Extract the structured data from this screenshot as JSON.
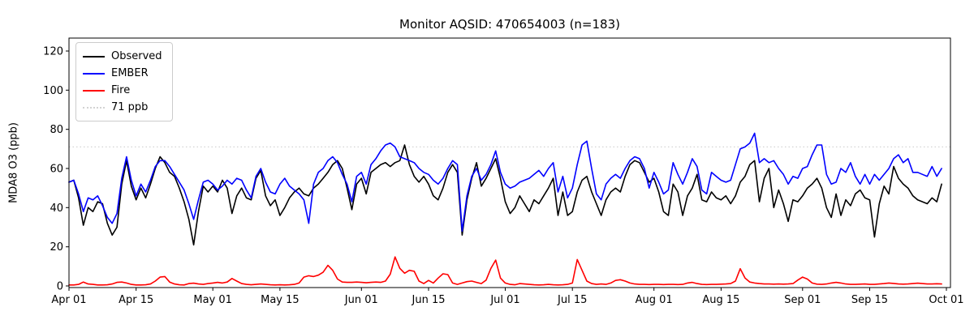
{
  "figure": {
    "title": "Monitor AQSID: 470654003 (n=183)",
    "ylabel": "MDA8 O3 (ppb)"
  },
  "legend": {
    "items": [
      {
        "label": "Observed",
        "color": "#000000",
        "style": "solid"
      },
      {
        "label": "EMBER",
        "color": "#0000ff",
        "style": "solid"
      },
      {
        "label": "Fire",
        "color": "#ff0000",
        "style": "solid"
      },
      {
        "label": "71 ppb",
        "color": "#d3d3d3",
        "style": "dotted"
      }
    ]
  },
  "chart_data": {
    "type": "line",
    "title": "Monitor AQSID: 470654003 (n=183)",
    "xlabel": "",
    "ylabel": "MDA8 O3 (ppb)",
    "x_unit": "daily values, Apr 01 through Sep 30 (day index 0-182)",
    "n_points": 183,
    "ylim": [
      -1,
      126
    ],
    "y_ticks": [
      0,
      20,
      40,
      60,
      80,
      100,
      120
    ],
    "x_tick_days": [
      0,
      14,
      30,
      44,
      61,
      75,
      91,
      105,
      122,
      136,
      153,
      167,
      183
    ],
    "x_tick_labels": [
      "Apr 01",
      "Apr 15",
      "May 01",
      "May 15",
      "Jun 01",
      "Jun 15",
      "Jul 01",
      "Jul 15",
      "Aug 01",
      "Aug 15",
      "Sep 01",
      "Sep 15",
      "Oct 01"
    ],
    "grid": false,
    "legend_position": "upper left",
    "threshold": {
      "value": 71,
      "label": "71 ppb",
      "color": "#d3d3d3",
      "style": "dotted"
    },
    "series": [
      {
        "name": "Observed",
        "color": "#000000",
        "values": [
          53,
          54,
          45,
          31,
          40,
          38,
          43,
          42,
          32,
          26,
          30,
          52,
          64,
          51,
          44,
          50,
          45,
          52,
          60,
          66,
          63,
          58,
          56,
          50,
          43,
          34,
          21,
          38,
          51,
          48,
          51,
          48,
          54,
          50,
          37,
          46,
          50,
          45,
          44,
          55,
          59,
          46,
          41,
          44,
          36,
          40,
          45,
          48,
          50,
          47,
          46,
          50,
          52,
          55,
          58,
          62,
          64,
          60,
          50,
          39,
          52,
          55,
          47,
          58,
          60,
          62,
          63,
          61,
          63,
          64,
          72,
          62,
          56,
          53,
          56,
          52,
          46,
          44,
          50,
          58,
          62,
          58,
          26,
          44,
          55,
          63,
          51,
          55,
          60,
          65,
          55,
          43,
          37,
          40,
          46,
          42,
          38,
          44,
          42,
          46,
          50,
          55,
          36,
          48,
          36,
          38,
          48,
          54,
          56,
          48,
          42,
          36,
          44,
          48,
          50,
          48,
          56,
          62,
          64,
          63,
          58,
          53,
          55,
          48,
          38,
          36,
          52,
          48,
          36,
          46,
          50,
          57,
          44,
          43,
          48,
          45,
          44,
          46,
          42,
          46,
          53,
          56,
          62,
          64,
          43,
          55,
          60,
          40,
          49,
          42,
          33,
          44,
          43,
          46,
          50,
          52,
          55,
          50,
          40,
          35,
          47,
          36,
          44,
          41,
          47,
          49,
          45,
          44,
          25,
          42,
          51,
          47,
          61,
          55,
          52,
          50,
          46,
          44,
          43,
          42,
          45,
          43,
          52
        ]
      },
      {
        "name": "EMBER",
        "color": "#0000ff",
        "values": [
          53,
          54,
          47,
          38,
          45,
          44,
          46,
          41,
          35,
          32,
          37,
          55,
          66,
          54,
          46,
          52,
          48,
          54,
          61,
          64,
          64,
          61,
          57,
          53,
          49,
          42,
          34,
          44,
          53,
          54,
          52,
          49,
          51,
          54,
          52,
          55,
          54,
          49,
          45,
          56,
          60,
          53,
          48,
          47,
          52,
          55,
          51,
          49,
          47,
          44,
          32,
          52,
          58,
          60,
          64,
          66,
          63,
          57,
          52,
          43,
          56,
          58,
          52,
          62,
          65,
          69,
          72,
          73,
          71,
          66,
          65,
          64,
          63,
          60,
          58,
          57,
          54,
          52,
          55,
          60,
          64,
          62,
          28,
          46,
          56,
          60,
          54,
          57,
          62,
          69,
          58,
          52,
          50,
          51,
          53,
          54,
          55,
          57,
          59,
          56,
          60,
          63,
          48,
          56,
          45,
          50,
          62,
          72,
          74,
          60,
          47,
          44,
          52,
          55,
          57,
          55,
          60,
          64,
          66,
          65,
          60,
          50,
          58,
          53,
          47,
          49,
          63,
          57,
          52,
          58,
          65,
          61,
          49,
          47,
          58,
          56,
          54,
          53,
          54,
          62,
          70,
          71,
          73,
          78,
          63,
          65,
          63,
          64,
          60,
          57,
          52,
          56,
          55,
          60,
          61,
          67,
          72,
          72,
          57,
          52,
          53,
          60,
          58,
          63,
          56,
          52,
          57,
          52,
          57,
          54,
          57,
          60,
          65,
          67,
          63,
          65,
          58,
          58,
          57,
          56,
          61,
          56,
          60
        ]
      },
      {
        "name": "Fire",
        "color": "#ff0000",
        "values": [
          0.5,
          0.5,
          0.8,
          2,
          1,
          0.8,
          0.5,
          0.5,
          0.6,
          1,
          1.8,
          2,
          1.5,
          0.8,
          0.5,
          0.5,
          0.6,
          1,
          2.5,
          4.5,
          4.8,
          2,
          1,
          0.6,
          0.5,
          1.2,
          1.4,
          1,
          0.8,
          1.2,
          1.5,
          1.8,
          1.5,
          2,
          3.8,
          2.5,
          1.2,
          0.8,
          0.6,
          0.8,
          1,
          0.8,
          0.6,
          0.5,
          0.6,
          0.5,
          0.6,
          0.8,
          1.5,
          4.5,
          5.2,
          4.8,
          5.5,
          7,
          10.5,
          8,
          3.5,
          2,
          1.8,
          1.8,
          2,
          1.8,
          1.6,
          1.8,
          2,
          1.8,
          2.5,
          6,
          14.8,
          9,
          6.5,
          8,
          7.5,
          2.5,
          1.2,
          2.8,
          1.5,
          4,
          6.2,
          5.8,
          1.5,
          0.8,
          1.5,
          2.2,
          2.5,
          1.8,
          1.2,
          3,
          9,
          13.2,
          4,
          1.5,
          0.8,
          0.6,
          1.2,
          1,
          0.8,
          0.6,
          0.5,
          0.6,
          0.8,
          0.6,
          0.5,
          0.6,
          0.8,
          1.5,
          13.5,
          8,
          2.5,
          1.2,
          0.8,
          1,
          0.8,
          1.5,
          2.8,
          3.2,
          2.5,
          1.5,
          1,
          0.8,
          0.8,
          0.7,
          0.8,
          0.8,
          0.7,
          0.8,
          0.8,
          0.7,
          0.8,
          1.5,
          1.8,
          1.2,
          0.8,
          0.7,
          0.8,
          0.8,
          0.9,
          1,
          1.2,
          2.5,
          8.8,
          4,
          2,
          1.5,
          1.2,
          1,
          1,
          0.9,
          1,
          0.9,
          1,
          1.2,
          3,
          4.5,
          3.5,
          1.5,
          0.9,
          0.8,
          1,
          1.5,
          1.8,
          1.5,
          1,
          0.8,
          0.8,
          0.9,
          1,
          0.8,
          0.8,
          1,
          1.2,
          1.5,
          1.3,
          1,
          0.9,
          1,
          1.2,
          1.4,
          1.2,
          1,
          1,
          1.1,
          1
        ]
      }
    ]
  }
}
